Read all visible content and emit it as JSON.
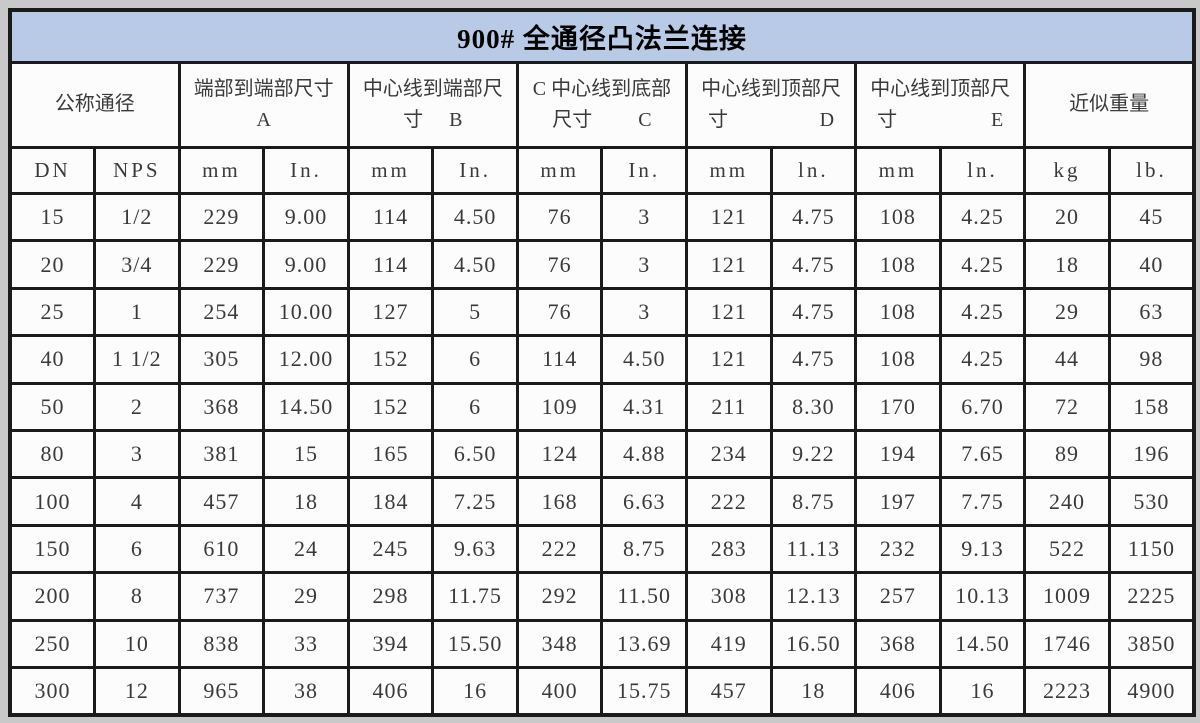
{
  "title": "900# 全通径凸法兰连接",
  "colors": {
    "title_bg": "#b8cae6",
    "border": "#1b1b1b",
    "cell_bg": "#fcfcfc",
    "margin_bg": "#c9c9c9",
    "text": "#3a3a3a"
  },
  "table": {
    "groups": [
      {
        "line1": "公称通径",
        "line2a": "",
        "line2b": ""
      },
      {
        "line1": "端部到端部尺寸",
        "line2a": "A",
        "line2b": ""
      },
      {
        "line1": "中心线到端部尺",
        "line2a": "寸",
        "line2b": "B"
      },
      {
        "line1": "C 中心线到底部",
        "line2a": "尺寸",
        "line2b": "C"
      },
      {
        "line1": "中心线到顶部尺",
        "line2a": "寸",
        "line2b": "D"
      },
      {
        "line1": "中心线到顶部尺",
        "line2a": "寸",
        "line2b": "E"
      },
      {
        "line1": "近似重量",
        "line2a": "",
        "line2b": ""
      }
    ],
    "subheaders": [
      "DN",
      "NPS",
      "mm",
      "In.",
      "mm",
      "In.",
      "mm",
      "In.",
      "mm",
      "ln.",
      "mm",
      "ln.",
      "kg",
      "lb."
    ],
    "rows": [
      [
        "15",
        "1/2",
        "229",
        "9.00",
        "114",
        "4.50",
        "76",
        "3",
        "121",
        "4.75",
        "108",
        "4.25",
        "20",
        "45"
      ],
      [
        "20",
        "3/4",
        "229",
        "9.00",
        "114",
        "4.50",
        "76",
        "3",
        "121",
        "4.75",
        "108",
        "4.25",
        "18",
        "40"
      ],
      [
        "25",
        "1",
        "254",
        "10.00",
        "127",
        "5",
        "76",
        "3",
        "121",
        "4.75",
        "108",
        "4.25",
        "29",
        "63"
      ],
      [
        "40",
        "1 1/2",
        "305",
        "12.00",
        "152",
        "6",
        "114",
        "4.50",
        "121",
        "4.75",
        "108",
        "4.25",
        "44",
        "98"
      ],
      [
        "50",
        "2",
        "368",
        "14.50",
        "152",
        "6",
        "109",
        "4.31",
        "211",
        "8.30",
        "170",
        "6.70",
        "72",
        "158"
      ],
      [
        "80",
        "3",
        "381",
        "15",
        "165",
        "6.50",
        "124",
        "4.88",
        "234",
        "9.22",
        "194",
        "7.65",
        "89",
        "196"
      ],
      [
        "100",
        "4",
        "457",
        "18",
        "184",
        "7.25",
        "168",
        "6.63",
        "222",
        "8.75",
        "197",
        "7.75",
        "240",
        "530"
      ],
      [
        "150",
        "6",
        "610",
        "24",
        "245",
        "9.63",
        "222",
        "8.75",
        "283",
        "11.13",
        "232",
        "9.13",
        "522",
        "1150"
      ],
      [
        "200",
        "8",
        "737",
        "29",
        "298",
        "11.75",
        "292",
        "11.50",
        "308",
        "12.13",
        "257",
        "10.13",
        "1009",
        "2225"
      ],
      [
        "250",
        "10",
        "838",
        "33",
        "394",
        "15.50",
        "348",
        "13.69",
        "419",
        "16.50",
        "368",
        "14.50",
        "1746",
        "3850"
      ],
      [
        "300",
        "12",
        "965",
        "38",
        "406",
        "16",
        "400",
        "15.75",
        "457",
        "18",
        "406",
        "16",
        "2223",
        "4900"
      ]
    ]
  }
}
